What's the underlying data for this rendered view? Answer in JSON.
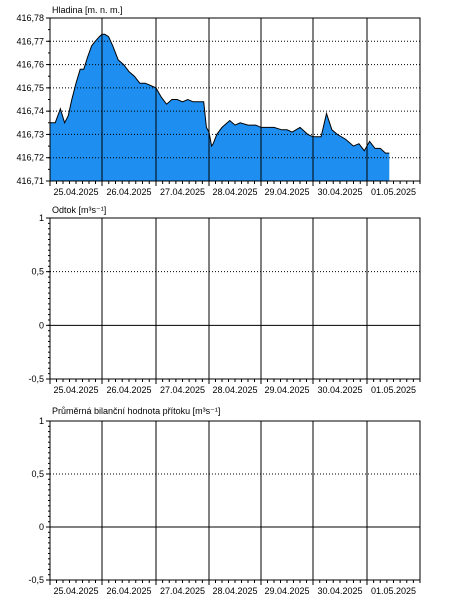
{
  "chart_data": [
    {
      "type": "area",
      "title": "Hladina [m. n. m.]",
      "ylim": [
        416.71,
        416.78
      ],
      "yticks": [
        "416,71",
        "416,72",
        "416,73",
        "416,74",
        "416,75",
        "416,76",
        "416,77",
        "416,78"
      ],
      "categories": [
        "25.04.2025",
        "26.04.2025",
        "27.04.2025",
        "28.04.2025",
        "29.04.2025",
        "30.04.2025",
        "01.05.2025"
      ],
      "fill_color": "#1e8ff0",
      "line_color": "#000000",
      "series": [
        {
          "x": [
            0.0,
            0.1,
            0.2,
            0.28,
            0.35,
            0.42,
            0.5,
            0.58,
            0.65,
            0.72,
            0.8,
            0.87,
            0.95,
            1.0,
            1.05,
            1.12,
            1.2,
            1.3,
            1.4,
            1.5,
            1.6,
            1.7,
            1.8,
            1.9,
            2.0,
            2.1,
            2.2,
            2.3,
            2.4,
            2.5,
            2.6,
            2.7,
            2.8,
            2.9,
            2.95,
            3.0,
            3.05,
            3.08,
            3.15,
            3.25,
            3.4,
            3.5,
            3.6,
            3.75,
            3.9,
            4.0,
            4.1,
            4.25,
            4.4,
            4.5,
            4.6,
            4.75,
            4.9,
            5.0,
            5.15,
            5.25,
            5.35,
            5.45,
            5.6,
            5.75,
            5.85,
            5.95,
            6.05,
            6.15,
            6.25,
            6.35,
            6.42
          ],
          "y": [
            416.735,
            416.735,
            416.741,
            416.735,
            416.738,
            416.745,
            416.752,
            416.758,
            416.758,
            416.763,
            416.768,
            416.77,
            416.772,
            416.773,
            416.773,
            416.772,
            416.768,
            416.762,
            416.76,
            416.757,
            416.755,
            416.752,
            416.752,
            416.751,
            416.75,
            416.746,
            416.743,
            416.745,
            416.745,
            416.744,
            416.745,
            416.744,
            416.744,
            416.744,
            416.733,
            416.731,
            416.725,
            416.726,
            416.73,
            416.733,
            416.736,
            416.734,
            416.735,
            416.734,
            416.734,
            416.733,
            416.733,
            416.733,
            416.732,
            416.732,
            416.731,
            416.733,
            416.73,
            416.729,
            416.729,
            416.739,
            416.732,
            416.73,
            416.728,
            416.725,
            416.726,
            416.723,
            416.727,
            416.724,
            416.724,
            416.722,
            416.722
          ]
        }
      ]
    },
    {
      "type": "line",
      "title": "Odtok [m³s⁻¹]",
      "ylim": [
        -0.5,
        1
      ],
      "yticks": [
        "-0,5",
        "0",
        "0,5",
        "1"
      ],
      "categories": [
        "25.04.2025",
        "26.04.2025",
        "27.04.2025",
        "28.04.2025",
        "29.04.2025",
        "30.04.2025",
        "01.05.2025"
      ],
      "series": []
    },
    {
      "type": "line",
      "title": "Průměrná bilanční hodnota přítoku   [m³s⁻¹]",
      "ylim": [
        -0.5,
        1
      ],
      "yticks": [
        "-0,5",
        "0",
        "0,5",
        "1"
      ],
      "categories": [
        "25.04.2025",
        "26.04.2025",
        "27.04.2025",
        "28.04.2025",
        "29.04.2025",
        "30.04.2025",
        "01.05.2025"
      ],
      "series": []
    }
  ]
}
